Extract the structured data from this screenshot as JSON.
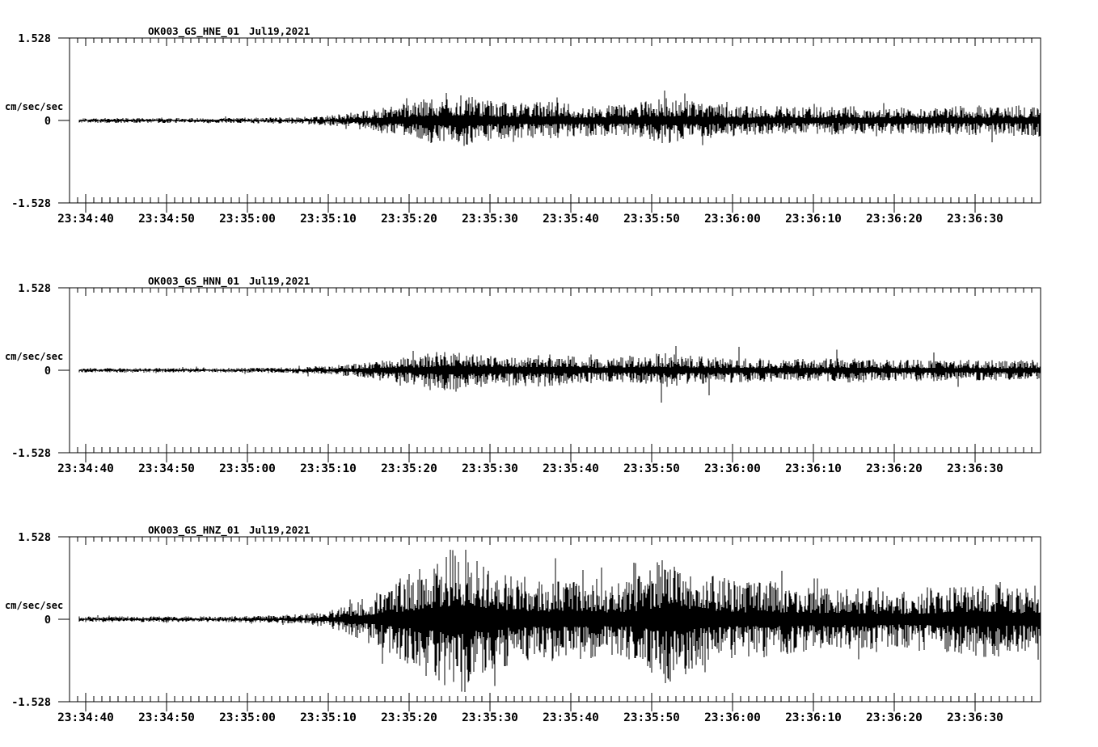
{
  "page": {
    "background_color": "#ffffff",
    "trace_color": "#000000"
  },
  "chart_data": [
    {
      "type": "line",
      "kind": "seismogram",
      "title_station": "OK003_GS_HNE_01",
      "title_date": "Jul19,2021",
      "ylabel": "cm/sec/sec",
      "ylim": [
        -1.528,
        1.528
      ],
      "ytick_labels": [
        "1.528",
        "0",
        "-1.528"
      ],
      "xtick_labels": [
        "23:34:40",
        "23:34:50",
        "23:35:00",
        "23:35:10",
        "23:35:20",
        "23:35:30",
        "23:35:40",
        "23:35:50",
        "23:36:00",
        "23:36:10",
        "23:36:20",
        "23:36:30"
      ],
      "x_span_seconds": 120,
      "x_major_tick_interval_s": 10,
      "x_minor_tick_interval_s": 1,
      "x_first_major_offset_s": 2,
      "envelope": {
        "t_s": [
          0,
          20,
          27,
          31,
          34,
          37,
          40,
          43,
          46,
          48,
          51,
          55,
          59,
          63,
          67,
          71,
          73,
          75,
          78,
          82,
          87,
          92,
          97,
          102,
          107,
          112,
          116,
          120
        ],
        "amp": [
          0.04,
          0.04,
          0.05,
          0.07,
          0.1,
          0.16,
          0.23,
          0.3,
          0.38,
          0.42,
          0.33,
          0.27,
          0.29,
          0.25,
          0.24,
          0.28,
          0.36,
          0.33,
          0.28,
          0.24,
          0.22,
          0.21,
          0.22,
          0.2,
          0.21,
          0.23,
          0.22,
          0.25
        ]
      },
      "spike_prob": 0.025,
      "spike_mult": 1.5,
      "noise_seed": 101
    },
    {
      "type": "line",
      "kind": "seismogram",
      "title_station": "OK003_GS_HNN_01",
      "title_date": "Jul19,2021",
      "ylabel": "cm/sec/sec",
      "ylim": [
        -1.528,
        1.528
      ],
      "ytick_labels": [
        "1.528",
        "0",
        "-1.528"
      ],
      "xtick_labels": [
        "23:34:40",
        "23:34:50",
        "23:35:00",
        "23:35:10",
        "23:35:20",
        "23:35:30",
        "23:35:40",
        "23:35:50",
        "23:36:00",
        "23:36:10",
        "23:36:20",
        "23:36:30"
      ],
      "x_span_seconds": 120,
      "x_major_tick_interval_s": 10,
      "x_minor_tick_interval_s": 1,
      "x_first_major_offset_s": 2,
      "envelope": {
        "t_s": [
          0,
          20,
          27,
          31,
          34,
          37,
          40,
          43,
          46,
          48,
          51,
          55,
          59,
          63,
          67,
          71,
          73,
          75,
          78,
          82,
          87,
          92,
          97,
          102,
          107,
          112,
          116,
          120
        ],
        "amp": [
          0.035,
          0.035,
          0.045,
          0.06,
          0.09,
          0.13,
          0.18,
          0.23,
          0.3,
          0.34,
          0.27,
          0.24,
          0.26,
          0.21,
          0.19,
          0.21,
          0.27,
          0.24,
          0.22,
          0.19,
          0.18,
          0.17,
          0.19,
          0.16,
          0.17,
          0.16,
          0.15,
          0.17
        ]
      },
      "spike_prob": 0.02,
      "spike_mult": 1.9,
      "noise_seed": 202
    },
    {
      "type": "line",
      "kind": "seismogram",
      "title_station": "OK003_GS_HNZ_01",
      "title_date": "Jul19,2021",
      "ylabel": "cm/sec/sec",
      "ylim": [
        -1.528,
        1.528
      ],
      "ytick_labels": [
        "1.528",
        "0",
        "-1.528"
      ],
      "xtick_labels": [
        "23:34:40",
        "23:34:50",
        "23:35:00",
        "23:35:10",
        "23:35:20",
        "23:35:30",
        "23:35:40",
        "23:35:50",
        "23:36:00",
        "23:36:10",
        "23:36:20",
        "23:36:30"
      ],
      "x_span_seconds": 120,
      "x_major_tick_interval_s": 10,
      "x_minor_tick_interval_s": 1,
      "x_first_major_offset_s": 2,
      "envelope": {
        "t_s": [
          0,
          20,
          26,
          30,
          33,
          36,
          39,
          42,
          45,
          47,
          49,
          51,
          54,
          58,
          62,
          66,
          70,
          72,
          74,
          76,
          79,
          83,
          87,
          91,
          95,
          99,
          103,
          107,
          111,
          114,
          117,
          120
        ],
        "amp": [
          0.045,
          0.045,
          0.06,
          0.09,
          0.16,
          0.3,
          0.5,
          0.7,
          0.95,
          1.1,
          1.15,
          0.9,
          0.72,
          0.62,
          0.66,
          0.56,
          0.62,
          0.85,
          1.0,
          0.9,
          0.7,
          0.56,
          0.6,
          0.5,
          0.46,
          0.5,
          0.45,
          0.5,
          0.55,
          0.62,
          0.5,
          0.55
        ]
      },
      "spike_prob": 0.03,
      "spike_mult": 1.45,
      "noise_seed": 303
    }
  ]
}
